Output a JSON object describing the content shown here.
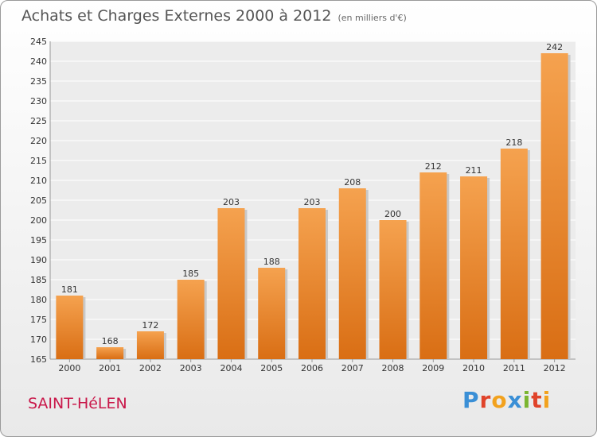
{
  "chart_data": {
    "type": "bar",
    "title": "Achats et Charges Externes 2000 à 2012",
    "subtitle": "(en milliers d'€)",
    "categories": [
      "2000",
      "2001",
      "2002",
      "2003",
      "2004",
      "2005",
      "2006",
      "2007",
      "2008",
      "2009",
      "2010",
      "2011",
      "2012"
    ],
    "values": [
      181,
      168,
      172,
      185,
      203,
      188,
      203,
      208,
      200,
      212,
      211,
      218,
      242
    ],
    "ylim": [
      165,
      245
    ],
    "yticks": [
      165,
      170,
      175,
      180,
      185,
      190,
      195,
      200,
      205,
      210,
      215,
      220,
      225,
      230,
      235,
      240,
      245
    ],
    "grid": true,
    "bar_color_top": "#f5a24f",
    "bar_color_bottom": "#d96e14"
  },
  "footer": {
    "city": "SAINT-HéLEN",
    "brand": "Proxiti",
    "brand_colors": [
      "#3a8fd6",
      "#e0432a",
      "#f2a21e",
      "#3a8fd6",
      "#7ab530",
      "#e0432a",
      "#f2a21e"
    ]
  }
}
